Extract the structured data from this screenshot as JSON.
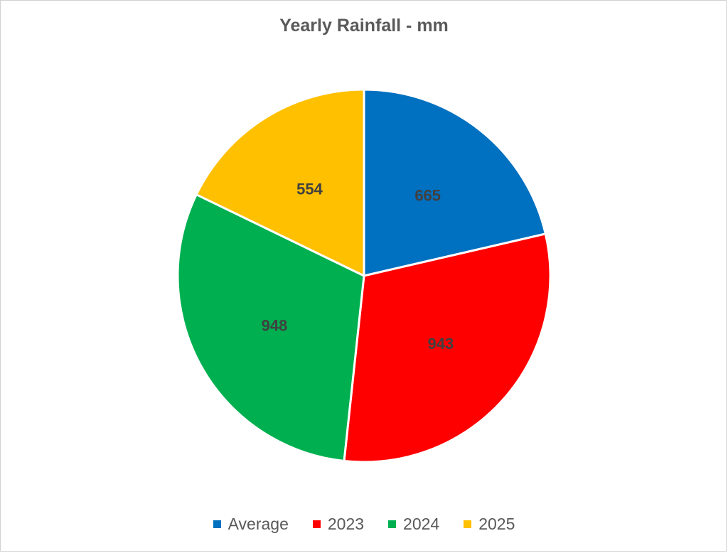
{
  "chart_data": {
    "type": "pie",
    "title": "Yearly Rainfall - mm",
    "categories": [
      "Average",
      "2023",
      "2024",
      "2025"
    ],
    "values": [
      665,
      943,
      948,
      554
    ],
    "colors": [
      "#0070C0",
      "#FF0000",
      "#00B050",
      "#FFC000"
    ],
    "data_labels": [
      "665",
      "943",
      "948",
      "554"
    ],
    "legend_position": "bottom"
  }
}
